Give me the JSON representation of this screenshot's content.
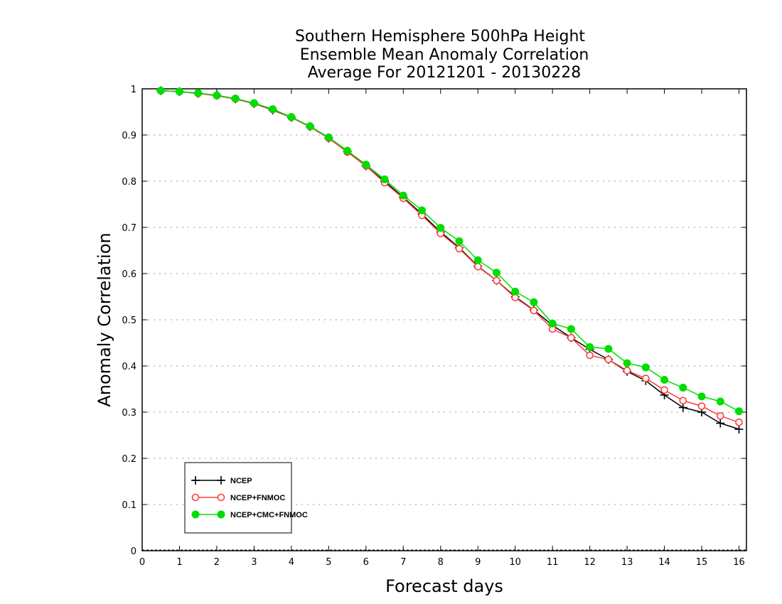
{
  "chart_data": {
    "type": "line",
    "title_lines": [
      "Southern Hemisphere 500hPa Height",
      "Ensemble Mean Anomaly Correlation",
      "Average For 20121201 - 20130228"
    ],
    "xlabel": "Forecast days",
    "ylabel": "Anomaly Correlation",
    "xlim": [
      0,
      16.2
    ],
    "ylim": [
      0,
      1
    ],
    "x_ticks": [
      "0",
      "1",
      "2",
      "3",
      "4",
      "5",
      "6",
      "7",
      "8",
      "9",
      "10",
      "11",
      "12",
      "13",
      "14",
      "15",
      "16"
    ],
    "y_ticks": [
      "0",
      "0.1",
      "0.2",
      "0.3",
      "0.4",
      "0.5",
      "0.6",
      "0.7",
      "0.8",
      "0.9",
      "1"
    ],
    "grid": true,
    "legend_position": "bottom-left",
    "x": [
      0.5,
      1,
      1.5,
      2,
      2.5,
      3,
      3.5,
      4,
      4.5,
      5,
      5.5,
      6,
      6.5,
      7,
      7.5,
      8,
      8.5,
      9,
      9.5,
      10,
      10.5,
      11,
      11.5,
      12,
      12.5,
      13,
      13.5,
      14,
      14.5,
      15,
      15.5,
      16
    ],
    "series": [
      {
        "name": "NCEP",
        "color": "#000000",
        "marker": "plus",
        "values": [
          0.996,
          0.994,
          0.99,
          0.986,
          0.978,
          0.968,
          0.954,
          0.938,
          0.918,
          0.893,
          0.864,
          0.833,
          0.8,
          0.765,
          0.729,
          0.69,
          0.656,
          0.616,
          0.585,
          0.55,
          0.521,
          0.488,
          0.461,
          0.436,
          0.414,
          0.388,
          0.368,
          0.337,
          0.31,
          0.3,
          0.276,
          0.263
        ]
      },
      {
        "name": "NCEP+FNMOC",
        "color": "#ff3b3b",
        "marker": "open-circle",
        "values": [
          0.996,
          0.994,
          0.99,
          0.985,
          0.978,
          0.968,
          0.955,
          0.938,
          0.918,
          0.893,
          0.863,
          0.833,
          0.797,
          0.763,
          0.726,
          0.687,
          0.654,
          0.615,
          0.585,
          0.548,
          0.52,
          0.48,
          0.461,
          0.423,
          0.414,
          0.39,
          0.373,
          0.348,
          0.325,
          0.313,
          0.292,
          0.278
        ]
      },
      {
        "name": "NCEP+CMC+FNMOC",
        "color": "#00dd00",
        "marker": "filled-circle",
        "values": [
          0.996,
          0.994,
          0.991,
          0.986,
          0.979,
          0.969,
          0.956,
          0.939,
          0.919,
          0.895,
          0.866,
          0.836,
          0.804,
          0.769,
          0.737,
          0.699,
          0.67,
          0.629,
          0.602,
          0.561,
          0.538,
          0.492,
          0.48,
          0.441,
          0.437,
          0.406,
          0.397,
          0.37,
          0.353,
          0.334,
          0.323,
          0.302
        ]
      }
    ]
  }
}
